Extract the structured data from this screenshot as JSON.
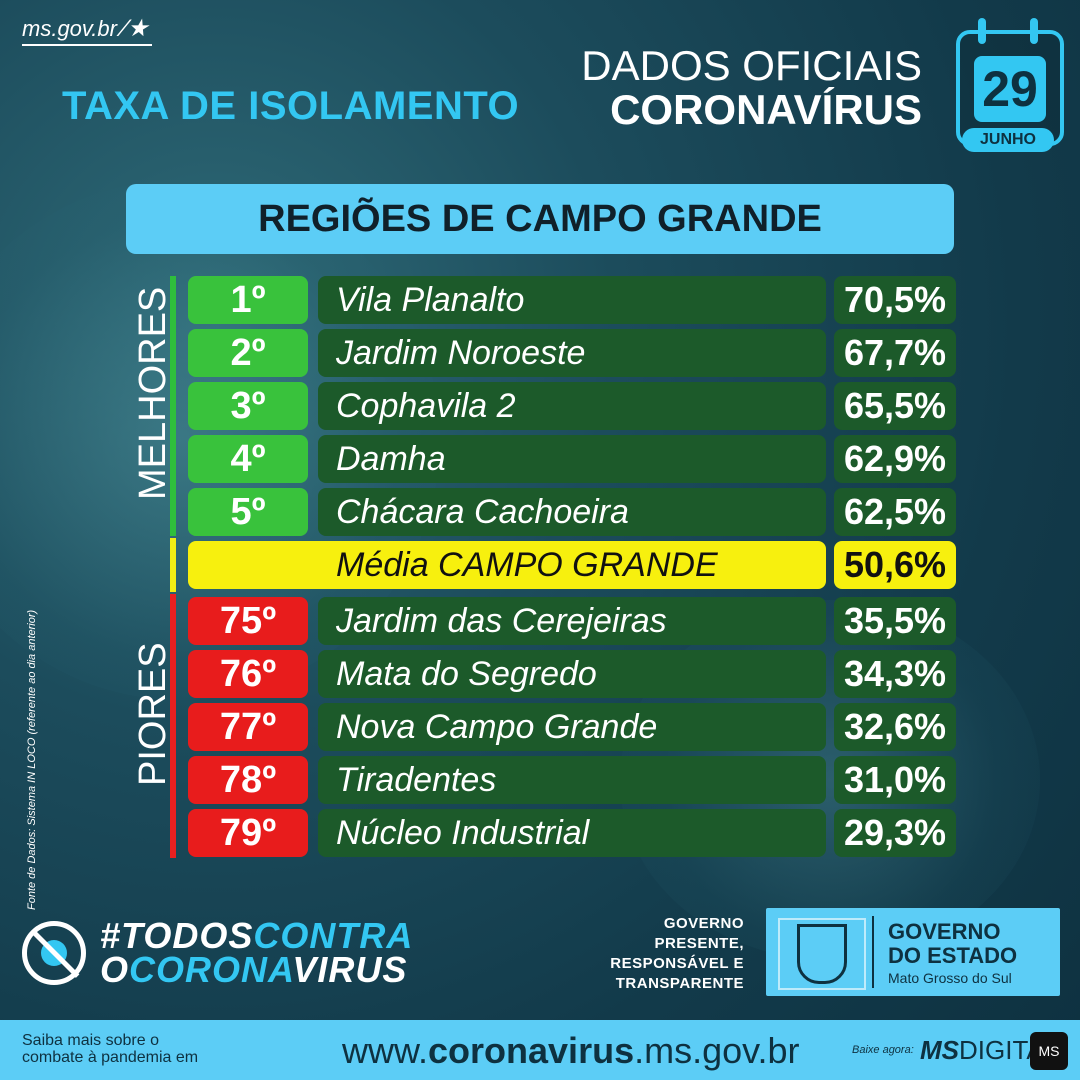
{
  "site": "ms.gov.br",
  "title_left": "TAXA DE ISOLAMENTO",
  "title_right": {
    "line1": "DADOS OFICIAIS",
    "line2": "CORONAVÍRUS"
  },
  "calendar": {
    "day": "29",
    "month": "JUNHO"
  },
  "table_title": "REGIÕES DE CAMPO GRANDE",
  "labels": {
    "best": "MELHORES",
    "worst": "PIORES"
  },
  "source_note": "Fonte de Dados: Sistema IN LOCO (referente ao dia anterior)",
  "best": [
    {
      "rank": "1º",
      "name": "Vila Planalto",
      "value": "70,5%"
    },
    {
      "rank": "2º",
      "name": "Jardim Noroeste",
      "value": "67,7%"
    },
    {
      "rank": "3º",
      "name": "Cophavila 2",
      "value": "65,5%"
    },
    {
      "rank": "4º",
      "name": "Damha",
      "value": "62,9%"
    },
    {
      "rank": "5º",
      "name": "Chácara Cachoeira",
      "value": "62,5%"
    }
  ],
  "average": {
    "name": "Média CAMPO GRANDE",
    "value": "50,6%"
  },
  "worst": [
    {
      "rank": "75º",
      "name": "Jardim das Cerejeiras",
      "value": "35,5%"
    },
    {
      "rank": "76º",
      "name": "Mata do Segredo",
      "value": "34,3%"
    },
    {
      "rank": "77º",
      "name": "Nova Campo Grande",
      "value": "32,6%"
    },
    {
      "rank": "78º",
      "name": "Tiradentes",
      "value": "31,0%"
    },
    {
      "rank": "79º",
      "name": "Núcleo Industrial",
      "value": "29,3%"
    }
  ],
  "campaign": {
    "line1a": "#TODOS",
    "line1b": "CONTRA",
    "line2a": "O",
    "line2b": "CORONA",
    "line2c": "VIRUS"
  },
  "gov_claim": [
    "GOVERNO",
    "PRESENTE,",
    "RESPONSÁVEL E",
    "TRANSPARENTE"
  ],
  "gov_box": {
    "title1": "GOVERNO",
    "title2": "DO ESTADO",
    "subtitle": "Mato Grosso do Sul"
  },
  "footer": {
    "saiba1": "Saiba mais sobre o",
    "saiba2": "combate à pandemia em",
    "url_prefix": "www.",
    "url_bold": "coronavirus",
    "url_suffix": ".ms.gov.br",
    "baixe": "Baixe agora:",
    "app_bold": "MS",
    "app_rest": "DIGITAL",
    "app_icon": "MS"
  },
  "colors": {
    "accent": "#33c7f2",
    "green": "#39c23c",
    "red": "#e81c1c",
    "yellow": "#f7f00e",
    "row_bg": "#1c5a2a"
  }
}
